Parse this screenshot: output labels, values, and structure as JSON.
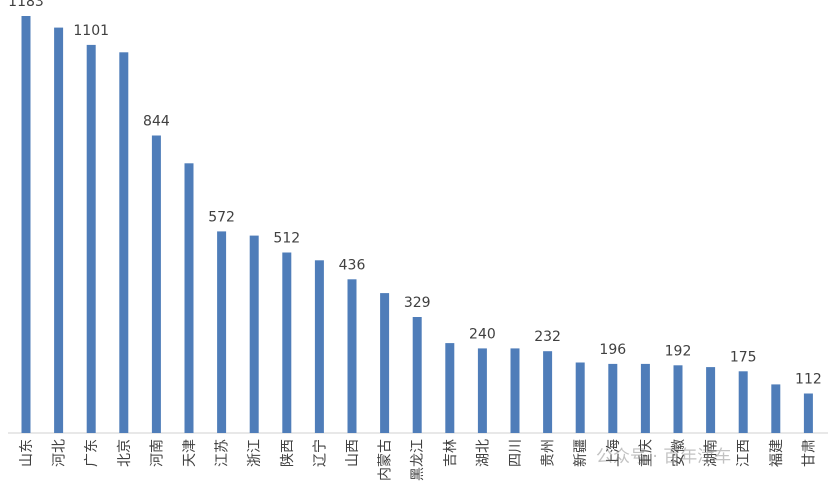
{
  "watermark": "公众号 · 百年津车",
  "chart_data": {
    "type": "bar",
    "title": "",
    "xlabel": "",
    "ylabel": "",
    "bar_color": "#4F7DB9",
    "ylim": [
      0,
      1200
    ],
    "grid": false,
    "categories": [
      "山东",
      "河北",
      "广东",
      "北京",
      "河南",
      "天津",
      "江苏",
      "浙江",
      "陕西",
      "辽宁",
      "山西",
      "内蒙古",
      "黑龙江",
      "吉林",
      "湖北",
      "四川",
      "贵州",
      "新疆",
      "上海",
      "重庆",
      "安徽",
      "湖南",
      "江西",
      "福建",
      "甘肃"
    ],
    "values": [
      1183,
      1150,
      1101,
      1080,
      844,
      765,
      572,
      560,
      512,
      490,
      436,
      397,
      329,
      255,
      240,
      240,
      232,
      200,
      196,
      196,
      192,
      187,
      175,
      138,
      112
    ],
    "labels": [
      "1183",
      "",
      "1101",
      "",
      "844",
      "",
      "572",
      "",
      "512",
      "",
      "436",
      "",
      "329",
      "",
      "240",
      "",
      "232",
      "",
      "196",
      "",
      "192",
      "",
      "175",
      "",
      "112"
    ]
  }
}
